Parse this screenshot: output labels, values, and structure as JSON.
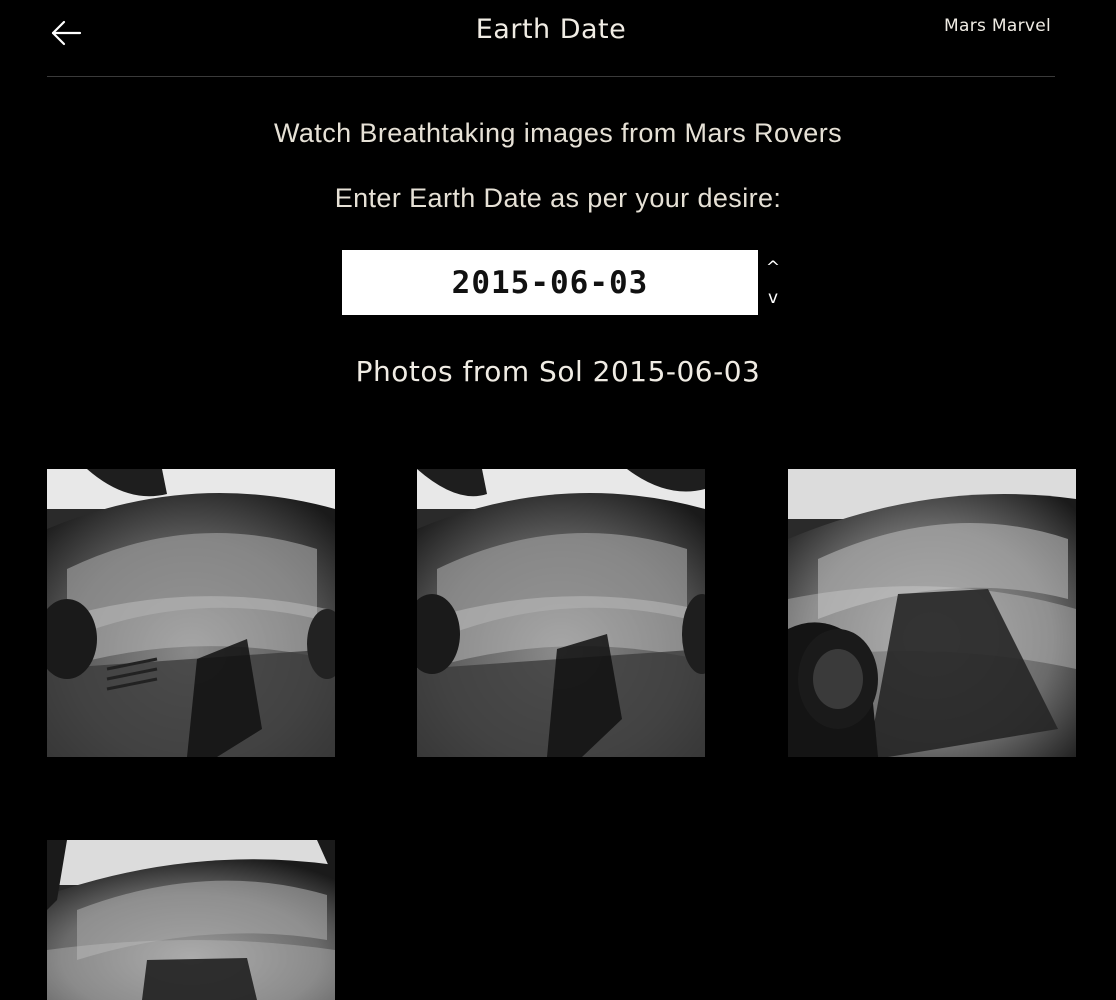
{
  "header": {
    "back_icon": "arrow-left-icon",
    "title": "Earth Date",
    "brand": "Mars Marvel"
  },
  "intro": {
    "tagline": "Watch Breathtaking images from Mars Rovers",
    "prompt": "Enter Earth Date as per your desire:"
  },
  "date_picker": {
    "value": "2015-06-03",
    "increment_label": "^",
    "decrement_label": "v"
  },
  "photos": {
    "heading": "Photos from Sol 2015-06-03",
    "items": [
      {
        "alt": "Mars rover photo 1"
      },
      {
        "alt": "Mars rover photo 2"
      },
      {
        "alt": "Mars rover photo 3"
      },
      {
        "alt": "Mars rover photo 4"
      }
    ]
  },
  "colors": {
    "background": "#000000",
    "text": "#e6e1d6",
    "input_background": "#ffffff"
  }
}
